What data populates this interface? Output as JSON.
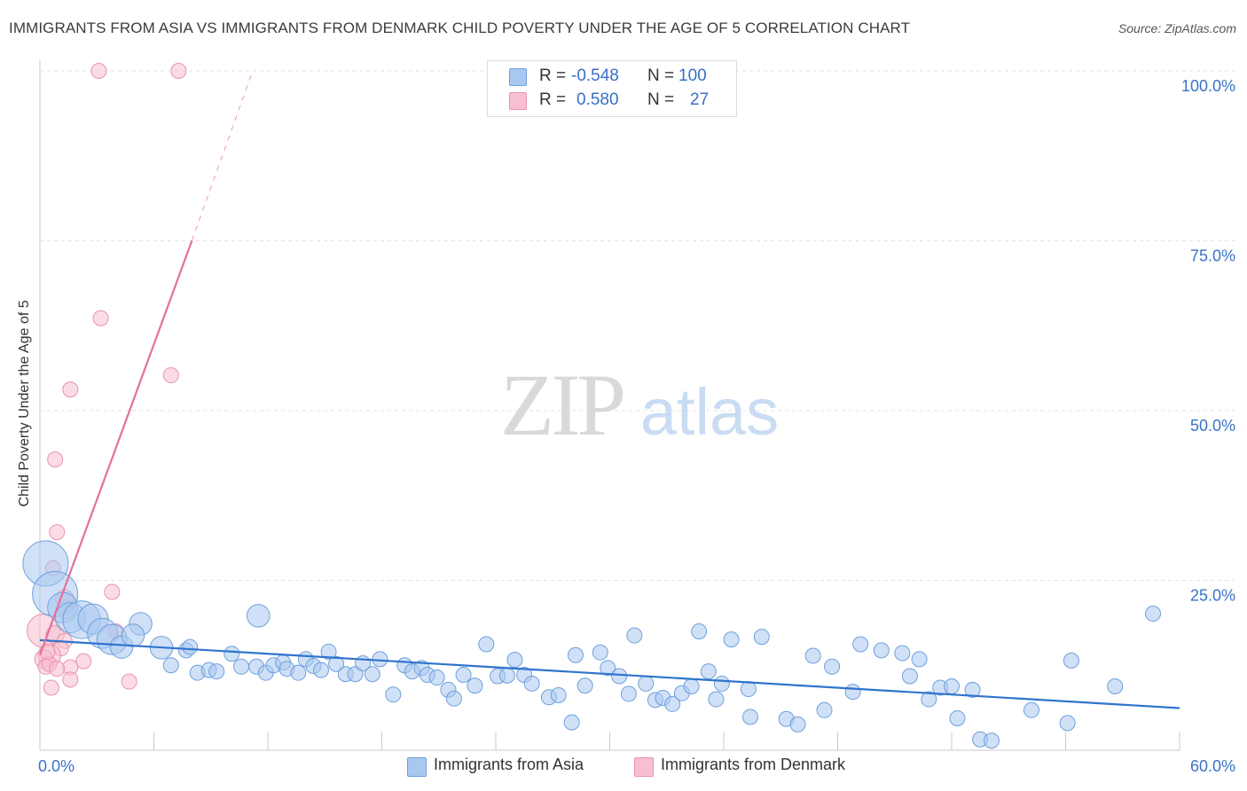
{
  "header": {
    "title": "IMMIGRANTS FROM ASIA VS IMMIGRANTS FROM DENMARK CHILD POVERTY UNDER THE AGE OF 5 CORRELATION CHART",
    "source": "Source: ZipAtlas.com"
  },
  "watermark": {
    "zip": "ZIP",
    "atlas": "atlas"
  },
  "legend": {
    "asia": {
      "r_label": "R =",
      "r_value": "-0.548",
      "n_label": "N =",
      "n_value": "100"
    },
    "denmark": {
      "r_label": "R =",
      "r_value": "0.580",
      "n_label": "N =",
      "n_value": "27"
    }
  },
  "bottom_legend": {
    "asia": "Immigrants from Asia",
    "denmark": "Immigrants from Denmark"
  },
  "colors": {
    "asia_fill": "#a9c8f0",
    "asia_stroke": "#6e9fdc",
    "asia_line": "#2f74cc",
    "denmark_fill": "#f7bfd0",
    "denmark_stroke": "#e893ad",
    "denmark_line": "#e5709a",
    "axis_text": "#3a73c6",
    "grid": "#e2e2e2"
  },
  "chart_data": {
    "type": "scatter",
    "title": "IMMIGRANTS FROM ASIA VS IMMIGRANTS FROM DENMARK CHILD POVERTY UNDER THE AGE OF 5 CORRELATION CHART",
    "xlabel": "",
    "ylabel": "Child Poverty Under the Age of 5",
    "xlim": [
      0,
      60
    ],
    "ylim": [
      0,
      100
    ],
    "x_tick_labels": [
      {
        "value": 0,
        "label": "0.0%"
      },
      {
        "value": 60,
        "label": "60.0%"
      }
    ],
    "y_tick_labels": [
      {
        "value": 25,
        "label": "25.0%"
      },
      {
        "value": 50,
        "label": "50.0%"
      },
      {
        "value": 75,
        "label": "75.0%"
      },
      {
        "value": 100,
        "label": "100.0%"
      }
    ],
    "grid": true,
    "series": [
      {
        "name": "Immigrants from Asia",
        "r": -0.548,
        "n": 100,
        "trend": {
          "x0": 0,
          "y0": 16.2,
          "x1": 60,
          "y1": 6.2
        },
        "points": [
          [
            0.3,
            27.5,
            3
          ],
          [
            0.8,
            23,
            3
          ],
          [
            1.2,
            21,
            2
          ],
          [
            1.6,
            19.5,
            2
          ],
          [
            2.2,
            19.2,
            2.5
          ],
          [
            2.8,
            19.3,
            2
          ],
          [
            3.3,
            17.2,
            2
          ],
          [
            3.8,
            16.3,
            2
          ],
          [
            4.3,
            15.2,
            1.5
          ],
          [
            5.3,
            18.6,
            1.5
          ],
          [
            4.9,
            16.9,
            1.5
          ],
          [
            6.4,
            15.1,
            1.5
          ],
          [
            6.9,
            12.5,
            1
          ],
          [
            7.7,
            14.7,
            1
          ],
          [
            7.9,
            15.2,
            1
          ],
          [
            8.3,
            11.4,
            1
          ],
          [
            8.9,
            11.8,
            1
          ],
          [
            9.3,
            11.6,
            1
          ],
          [
            10.1,
            14.2,
            1
          ],
          [
            10.6,
            12.3,
            1
          ],
          [
            11.5,
            19.8,
            1.5
          ],
          [
            11.4,
            12.3,
            1
          ],
          [
            11.9,
            11.4,
            1
          ],
          [
            12.3,
            12.5,
            1
          ],
          [
            12.8,
            12.9,
            1
          ],
          [
            13.0,
            12.0,
            1
          ],
          [
            13.6,
            11.4,
            1
          ],
          [
            14.0,
            13.4,
            1
          ],
          [
            14.4,
            12.4,
            1
          ],
          [
            14.8,
            11.8,
            1
          ],
          [
            15.2,
            14.5,
            1
          ],
          [
            15.6,
            12.7,
            1
          ],
          [
            16.1,
            11.2,
            1
          ],
          [
            16.6,
            11.2,
            1
          ],
          [
            17.0,
            12.8,
            1
          ],
          [
            17.5,
            11.2,
            1
          ],
          [
            17.9,
            13.4,
            1
          ],
          [
            18.6,
            8.2,
            1
          ],
          [
            19.2,
            12.5,
            1
          ],
          [
            19.6,
            11.6,
            1
          ],
          [
            20.1,
            12.1,
            1
          ],
          [
            20.4,
            11.1,
            1
          ],
          [
            20.9,
            10.7,
            1
          ],
          [
            21.5,
            8.9,
            1
          ],
          [
            21.8,
            7.6,
            1
          ],
          [
            22.3,
            11.1,
            1
          ],
          [
            22.9,
            9.5,
            1
          ],
          [
            23.5,
            15.6,
            1
          ],
          [
            24.1,
            10.9,
            1
          ],
          [
            24.6,
            11.0,
            1
          ],
          [
            25.0,
            13.3,
            1
          ],
          [
            25.5,
            11.1,
            1
          ],
          [
            25.9,
            9.8,
            1
          ],
          [
            26.8,
            7.8,
            1
          ],
          [
            27.3,
            8.1,
            1
          ],
          [
            28.0,
            4.1,
            1
          ],
          [
            28.2,
            14.0,
            1
          ],
          [
            28.7,
            9.5,
            1
          ],
          [
            29.5,
            14.4,
            1
          ],
          [
            29.9,
            12.1,
            1
          ],
          [
            30.5,
            10.9,
            1
          ],
          [
            31.0,
            8.3,
            1
          ],
          [
            31.3,
            16.9,
            1
          ],
          [
            31.9,
            9.8,
            1
          ],
          [
            32.4,
            7.4,
            1
          ],
          [
            32.8,
            7.7,
            1
          ],
          [
            33.3,
            6.8,
            1
          ],
          [
            33.8,
            8.4,
            1
          ],
          [
            34.3,
            9.4,
            1
          ],
          [
            34.7,
            17.5,
            1
          ],
          [
            35.2,
            11.6,
            1
          ],
          [
            35.6,
            7.5,
            1
          ],
          [
            35.9,
            9.8,
            1
          ],
          [
            36.4,
            16.3,
            1
          ],
          [
            37.3,
            9.0,
            1
          ],
          [
            38.0,
            16.7,
            1
          ],
          [
            37.4,
            4.9,
            1
          ],
          [
            39.3,
            4.6,
            1
          ],
          [
            39.9,
            3.8,
            1
          ],
          [
            40.7,
            13.9,
            1
          ],
          [
            41.3,
            5.9,
            1
          ],
          [
            41.7,
            12.3,
            1
          ],
          [
            43.2,
            15.6,
            1
          ],
          [
            42.8,
            8.6,
            1
          ],
          [
            44.3,
            14.7,
            1
          ],
          [
            45.4,
            14.3,
            1
          ],
          [
            45.8,
            10.9,
            1
          ],
          [
            46.3,
            13.4,
            1
          ],
          [
            46.8,
            7.5,
            1
          ],
          [
            47.4,
            9.2,
            1
          ],
          [
            48.0,
            9.4,
            1
          ],
          [
            48.3,
            4.7,
            1
          ],
          [
            49.1,
            8.9,
            1
          ],
          [
            49.5,
            1.6,
            1
          ],
          [
            50.1,
            1.4,
            1
          ],
          [
            52.2,
            5.9,
            1
          ],
          [
            54.3,
            13.2,
            1
          ],
          [
            54.1,
            4.0,
            1
          ],
          [
            56.6,
            9.4,
            1
          ],
          [
            58.6,
            20.1,
            1
          ]
        ]
      },
      {
        "name": "Immigrants from Denmark",
        "r": 0.58,
        "n": 27,
        "trend": {
          "x0": 0,
          "y0": 14.0,
          "x1": 8.0,
          "y1": 75.0,
          "dashed_to": {
            "x": 11.2,
            "y": 100
          }
        },
        "points": [
          [
            3.1,
            100,
            1
          ],
          [
            7.3,
            100,
            1
          ],
          [
            3.2,
            63.6,
            1
          ],
          [
            6.9,
            55.2,
            1
          ],
          [
            1.6,
            53.1,
            1
          ],
          [
            0.8,
            42.8,
            1
          ],
          [
            0.9,
            32.1,
            1
          ],
          [
            0.7,
            26.8,
            1
          ],
          [
            3.8,
            23.3,
            1
          ],
          [
            1.3,
            22.3,
            1.2
          ],
          [
            1.4,
            20.7,
            1.2
          ],
          [
            0.2,
            17.6,
            2.2
          ],
          [
            0.8,
            17.0,
            1.2
          ],
          [
            4.0,
            17.5,
            1
          ],
          [
            1.3,
            16.1,
            1
          ],
          [
            1.1,
            15.0,
            1
          ],
          [
            0.5,
            13.9,
            1.5
          ],
          [
            2.3,
            13.1,
            1
          ],
          [
            0.2,
            13.4,
            1.2
          ],
          [
            0.3,
            12.3,
            1
          ],
          [
            1.6,
            12.2,
            1
          ],
          [
            0.5,
            12.7,
            1
          ],
          [
            0.4,
            14.5,
            1
          ],
          [
            1.6,
            10.4,
            1
          ],
          [
            4.7,
            10.1,
            1
          ],
          [
            0.6,
            9.2,
            1
          ],
          [
            0.9,
            12.0,
            1
          ]
        ]
      }
    ]
  }
}
